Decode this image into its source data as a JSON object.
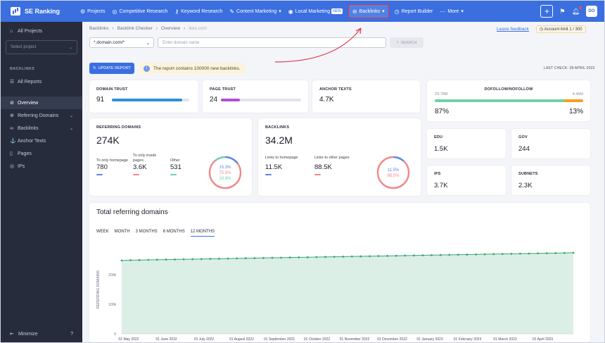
{
  "app": {
    "name": "SE Ranking"
  },
  "nav": {
    "items": [
      {
        "label": "Projects",
        "icon": "projects-icon"
      },
      {
        "label": "Competitive Research",
        "icon": "competitive-icon"
      },
      {
        "label": "Keyword Research",
        "icon": "key-icon"
      },
      {
        "label": "Content Marketing",
        "icon": "edit-icon"
      },
      {
        "label": "Local Marketing",
        "icon": "location-pin-icon",
        "badge": "NEW"
      },
      {
        "label": "Backlinks",
        "icon": "link-icon"
      },
      {
        "label": "Report Builder",
        "icon": "clock-icon"
      },
      {
        "label": "More",
        "icon": "more-icon"
      }
    ],
    "avatar": "DO"
  },
  "sidebar": {
    "all_projects": "All Projects",
    "project_placeholder": "Select project",
    "section": "BACKLINKS",
    "all_reports": "All Reports",
    "items": [
      {
        "label": "Overview"
      },
      {
        "label": "Referring Domains"
      },
      {
        "label": "Backlinks"
      },
      {
        "label": "Anchor Texts"
      },
      {
        "label": "Pages"
      },
      {
        "label": "IPs"
      }
    ],
    "minimize": "Minimize"
  },
  "header": {
    "breadcrumbs": [
      "Backlinks",
      "Backlink Checker",
      "Overview",
      "ikes.com"
    ],
    "feedback": "Leave feedback",
    "limit": "Account limit 1 / 300"
  },
  "search": {
    "mode": "*.domain.com/*",
    "placeholder": "Enter domain name",
    "button": "SEARCH"
  },
  "update": {
    "button": "UPDATE REPORT",
    "notice": "The report contains 100000 new backlinks.",
    "last_check": "LAST CHECK: 28 APRIL 2023"
  },
  "metrics": {
    "domain_trust": {
      "label": "DOMAIN TRUST",
      "value": "91",
      "fill": 0.91,
      "color": "#2f8fd8"
    },
    "page_trust": {
      "label": "PAGE TRUST",
      "value": "24",
      "fill": 0.24,
      "color": "#b44bd0"
    },
    "anchor_texts": {
      "label": "ANCHOR TEXTS",
      "value": "4.7K"
    },
    "dofollow": {
      "label": "DOFOLLOW/NOFOLLOW",
      "left_count": "29.78M",
      "right_count": "4.46M",
      "left_pct": "87%",
      "right_pct": "13%",
      "fill": 0.87
    }
  },
  "ref_domains": {
    "label": "REFERRING DOMAINS",
    "value": "274K",
    "stats": [
      {
        "label": "To only homepage",
        "value": "780",
        "color": "#5b86e5"
      },
      {
        "label": "To only inside pages",
        "value": "3.6K",
        "color": "#f08a8a"
      },
      {
        "label": "Other",
        "value": "531",
        "color": "#6fd0a9"
      }
    ],
    "donut": [
      {
        "label": "15.3%",
        "value": 15.3,
        "color": "#5b86e5"
      },
      {
        "label": "75.5%",
        "value": 75.5,
        "color": "#f08a8a"
      },
      {
        "label": "10.8%",
        "value": 10.8,
        "color": "#6fd0a9"
      }
    ]
  },
  "backlinks": {
    "label": "BACKLINKS",
    "value": "34.2M",
    "stats": [
      {
        "label": "Links to homepage",
        "value": "11.5K",
        "color": "#5b86e5"
      },
      {
        "label": "Links to other pages",
        "value": "88.5K",
        "color": "#f08a8a"
      }
    ],
    "donut": [
      {
        "label": "11.5%",
        "value": 11.5,
        "color": "#5b86e5"
      },
      {
        "label": "88.5%",
        "value": 88.5,
        "color": "#f08a8a"
      }
    ]
  },
  "small_cards": [
    {
      "label": "EDU",
      "value": "1.5K"
    },
    {
      "label": "GOV",
      "value": "244"
    },
    {
      "label": "IPS",
      "value": "3.7K"
    },
    {
      "label": "SUBNETS",
      "value": "2.3K"
    }
  ],
  "chart_section": {
    "title": "Total referring domains",
    "tabs": [
      "WEEK",
      "MONTH",
      "3 MONTHS",
      "6 MONTHS",
      "12 MONTHS"
    ],
    "active_tab": "12 MONTHS"
  },
  "chart_data": {
    "type": "area",
    "title": "Total referring domains",
    "ylabel": "REFERRING DOMAINS",
    "ylim": [
      0,
      300000
    ],
    "yticks": [
      {
        "v": 0,
        "label": "0"
      },
      {
        "v": 100000,
        "label": "100k"
      },
      {
        "v": 200000,
        "label": "200k"
      }
    ],
    "xticks": [
      "01 May 2022",
      "01 June 2022",
      "01 July 2022",
      "01 August 2022",
      "01 September 2022",
      "01 October 2022",
      "01 November 2022",
      "01 December 2022",
      "01 January 2023",
      "01 February 2023",
      "01 March 2023",
      "01 April 2023"
    ],
    "series": [
      {
        "values": [
          248000,
          249000,
          249500,
          250000,
          250500,
          251000,
          251500,
          252000,
          252500,
          253000,
          253500,
          254000,
          254500,
          255000,
          255500,
          256000,
          256500,
          257000,
          257500,
          258000,
          258500,
          259000,
          259500,
          260000,
          260500,
          261000,
          261500,
          262000,
          262500,
          263000,
          263500,
          264000,
          264500,
          265000,
          265500,
          266000,
          266500,
          267000,
          267500,
          268000,
          268500,
          269000,
          269500,
          270000,
          270500,
          271000,
          271500,
          272000,
          272500,
          273000,
          273500,
          274000
        ]
      }
    ],
    "color": "#3aa675",
    "grid": false
  }
}
